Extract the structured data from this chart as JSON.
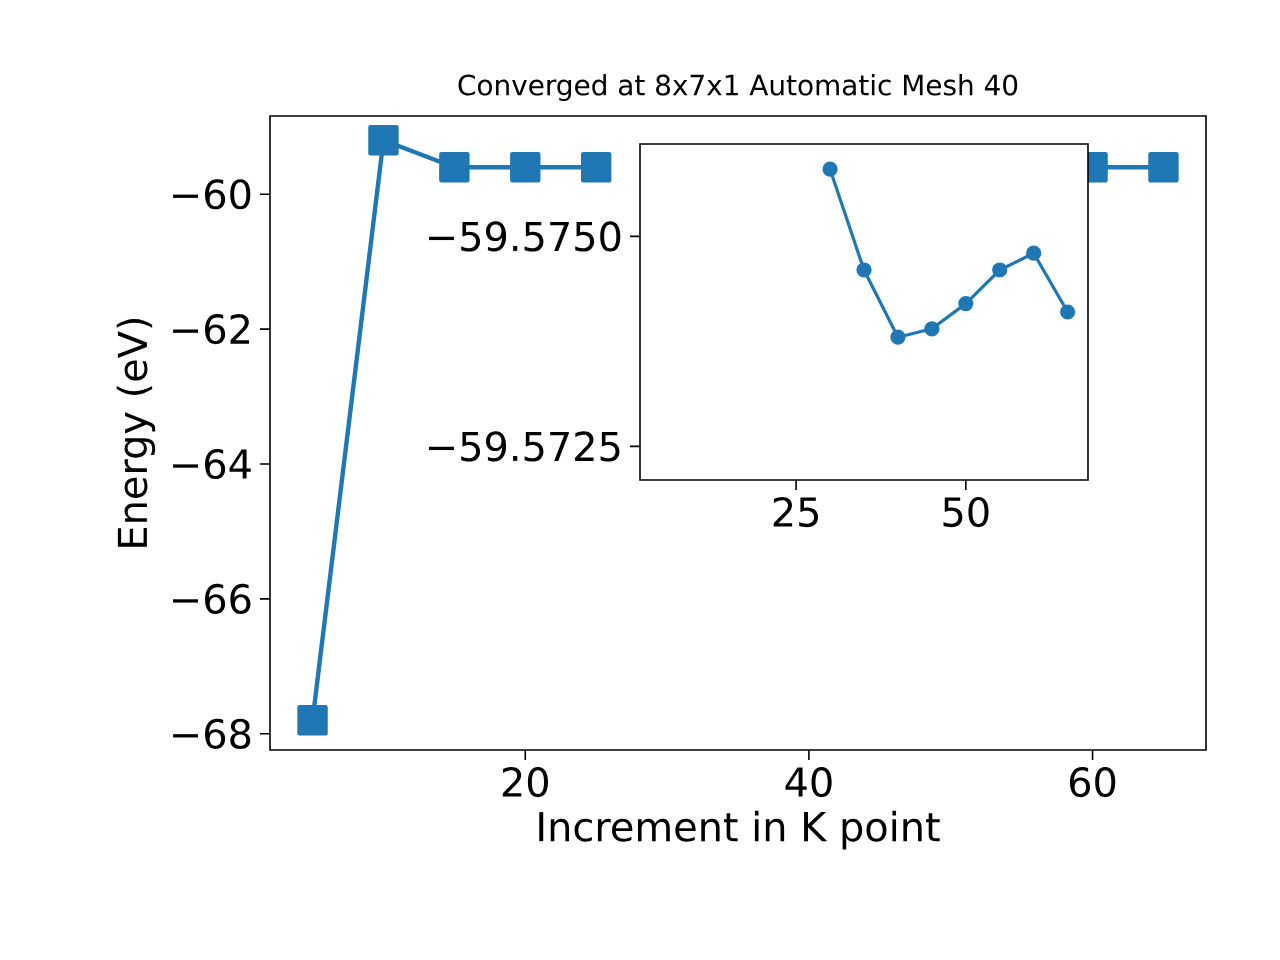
{
  "chart_data": [
    {
      "type": "line",
      "title": "Converged at 8x7x1 Automatic Mesh 40",
      "xlabel": "Increment in K point",
      "ylabel": "Energy (eV)",
      "x": [
        5,
        10,
        15,
        20,
        25,
        30,
        35,
        40,
        45,
        50,
        55,
        60,
        65
      ],
      "series": [
        {
          "color": "#1f77b4",
          "values": [
            -67.8,
            -59.2,
            -59.6,
            -59.6,
            -59.6,
            null,
            null,
            null,
            null,
            null,
            null,
            -59.6,
            -59.6
          ]
        }
      ],
      "xlim": [
        2,
        68
      ],
      "ylim": [
        -68.24,
        -58.84
      ],
      "xticks": [
        20,
        40,
        60
      ],
      "yticks": [
        {
          "value": -68,
          "label": "−68"
        },
        {
          "value": -66,
          "label": "−66"
        },
        {
          "value": -64,
          "label": "−64"
        },
        {
          "value": -62,
          "label": "−62"
        },
        {
          "value": -60,
          "label": "−60"
        }
      ],
      "marker": "square",
      "line_style": "solid",
      "grid": false
    },
    {
      "type": "line",
      "x": [
        30,
        35,
        40,
        45,
        50,
        55,
        60,
        65
      ],
      "series": [
        {
          "color": "#1f77b4",
          "values": [
            -59.5758,
            -59.5746,
            -59.5738,
            -59.5739,
            -59.5742,
            -59.5746,
            -59.5748,
            -59.5741
          ]
        }
      ],
      "xlim": [
        2,
        68
      ],
      "ylim": [
        -59.5721,
        -59.5761
      ],
      "xticks": [
        25,
        50
      ],
      "yticks": [
        {
          "value": -59.575,
          "label": "−59.5750"
        },
        {
          "value": -59.5725,
          "label": "−59.5725"
        }
      ],
      "marker": "circle",
      "line_style": "solid",
      "grid": false
    }
  ]
}
